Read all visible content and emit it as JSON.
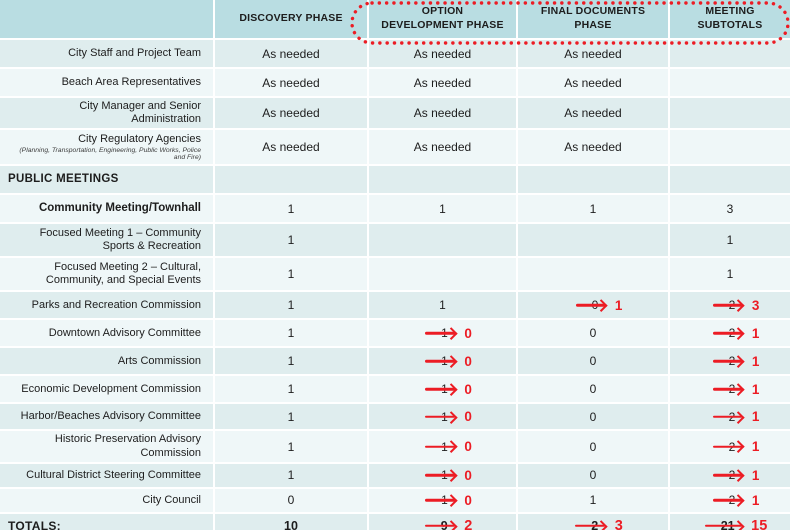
{
  "colors": {
    "header_bg": "#b9dde2",
    "row_dark": "#dfedee",
    "row_light": "#eff7f8",
    "grid": "#ffffff",
    "text": "#1d1d1d",
    "annotation_red": "#ec1c24",
    "bottom_border": "#a9d4da"
  },
  "header": {
    "columns": [
      {
        "name": "row-labels",
        "lines": [
          ""
        ]
      },
      {
        "name": "discovery-phase",
        "lines": [
          "DISCOVERY PHASE"
        ],
        "circled": false
      },
      {
        "name": "option-development-phase",
        "lines": [
          "OPTION",
          "DEVELOPMENT PHASE"
        ],
        "circled": true
      },
      {
        "name": "final-documents-phase",
        "lines": [
          "FINAL DOCUMENTS",
          "PHASE"
        ],
        "circled": true
      },
      {
        "name": "meeting-subtotals",
        "lines": [
          "MEETING",
          "SUBTOTALS"
        ],
        "circled": true
      }
    ]
  },
  "rows": [
    {
      "label": "City Staff and Project Team",
      "cells": [
        {
          "v": "As needed"
        },
        {
          "v": "As needed"
        },
        {
          "v": "As needed"
        },
        {}
      ]
    },
    {
      "label": "Beach Area Representatives",
      "cells": [
        {
          "v": "As needed"
        },
        {
          "v": "As needed"
        },
        {
          "v": "As needed"
        },
        {}
      ]
    },
    {
      "label": "City Manager and Senior Administration",
      "cells": [
        {
          "v": "As needed"
        },
        {
          "v": "As needed"
        },
        {
          "v": "As needed"
        },
        {}
      ]
    },
    {
      "label": "City Regulatory Agencies",
      "sublabel": "(Planning,  Transportation,  Engineering,  Public Works, Police and Fire)",
      "cells": [
        {
          "v": "As needed"
        },
        {
          "v": "As needed"
        },
        {
          "v": "As needed"
        },
        {}
      ]
    },
    {
      "label": "PUBLIC MEETINGS",
      "style": "section",
      "cells": [
        {},
        {},
        {},
        {}
      ]
    },
    {
      "label": "Community Meeting/Townhall",
      "style": "bold",
      "cells": [
        {
          "v": "1"
        },
        {
          "v": "1"
        },
        {
          "v": "1"
        },
        {
          "v": "3"
        }
      ]
    },
    {
      "label": "Focused Meeting 1 – Community Sports & Recreation",
      "cells": [
        {
          "v": "1"
        },
        {},
        {},
        {
          "v": "1"
        }
      ]
    },
    {
      "label": "Focused Meeting 2 – Cultural, Community, and Special Events",
      "cells": [
        {
          "v": "1"
        },
        {},
        {},
        {
          "v": "1"
        }
      ]
    },
    {
      "label": "Parks and Recreation Commission",
      "cells": [
        {
          "v": "1"
        },
        {
          "v": "1"
        },
        {
          "orig": "0",
          "new": "1"
        },
        {
          "orig": "2",
          "new": "3"
        }
      ]
    },
    {
      "label": "Downtown Advisory Committee",
      "cells": [
        {
          "v": "1"
        },
        {
          "orig": "1",
          "new": "0"
        },
        {
          "v": "0"
        },
        {
          "orig": "2",
          "new": "1"
        }
      ]
    },
    {
      "label": "Arts Commission",
      "cells": [
        {
          "v": "1"
        },
        {
          "orig": "1",
          "new": "0"
        },
        {
          "v": "0"
        },
        {
          "orig": "2",
          "new": "1"
        }
      ]
    },
    {
      "label": "Economic Development Commission",
      "cells": [
        {
          "v": "1"
        },
        {
          "orig": "1",
          "new": "0"
        },
        {
          "v": "0"
        },
        {
          "orig": "2",
          "new": "1"
        }
      ]
    },
    {
      "label": "Harbor/Beaches Advisory Committee",
      "cells": [
        {
          "v": "1"
        },
        {
          "orig": "1",
          "new": "0"
        },
        {
          "v": "0"
        },
        {
          "orig": "2",
          "new": "1"
        }
      ]
    },
    {
      "label": "Historic Preservation Advisory Commission",
      "cells": [
        {
          "v": "1"
        },
        {
          "orig": "1",
          "new": "0"
        },
        {
          "v": "0"
        },
        {
          "orig": "2",
          "new": "1"
        }
      ]
    },
    {
      "label": "Cultural District Steering Committee",
      "cells": [
        {
          "v": "1"
        },
        {
          "orig": "1",
          "new": "0"
        },
        {
          "v": "0"
        },
        {
          "orig": "2",
          "new": "1"
        }
      ]
    },
    {
      "label": "City Council",
      "cells": [
        {
          "v": "0"
        },
        {
          "orig": "1",
          "new": "0"
        },
        {
          "v": "1"
        },
        {
          "orig": "2",
          "new": "1"
        }
      ]
    },
    {
      "label": "TOTALS:",
      "style": "totals",
      "cells": [
        {
          "v": "10",
          "u": true,
          "b": true
        },
        {
          "orig": "9",
          "new": "2",
          "u": true
        },
        {
          "orig": "2",
          "new": "3",
          "u": true
        },
        {
          "orig": "21",
          "new": "15",
          "u": true
        }
      ]
    }
  ]
}
